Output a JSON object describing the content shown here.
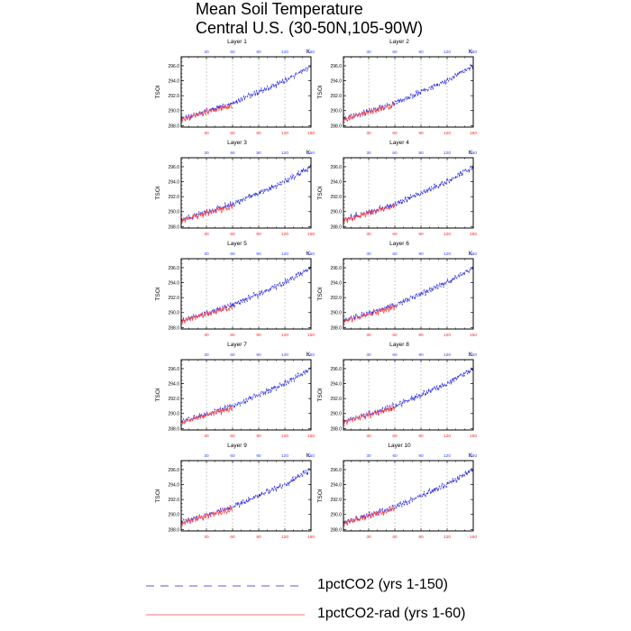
{
  "figure": {
    "title_line1": "Mean Soil Temperature",
    "title_line2": "Central U.S. (30-50N,105-90W)"
  },
  "chart_data": {
    "type": "line",
    "ylabel": "TSOI",
    "units_label": "K",
    "ylim": [
      287.8,
      297.2
    ],
    "yticks": [
      288.0,
      290.0,
      292.0,
      294.0,
      296.0
    ],
    "ytick_labels": [
      "288.0",
      "290.0",
      "292.0",
      "294.0",
      "296.0"
    ],
    "x_top": {
      "range": [
        1,
        150
      ],
      "ticks": [
        30,
        60,
        90,
        120,
        150
      ],
      "color": "#3344ff"
    },
    "x_bottom": {
      "range": [
        1,
        150
      ],
      "ticks": [
        30,
        60,
        90,
        120,
        150
      ],
      "color": "#ff2222"
    },
    "grid_vertical_at": [
      30,
      60,
      90,
      120
    ],
    "panels": [
      {
        "title": "Layer 1"
      },
      {
        "title": "Layer 2"
      },
      {
        "title": "Layer 3"
      },
      {
        "title": "Layer 4"
      },
      {
        "title": "Layer 5"
      },
      {
        "title": "Layer 6"
      },
      {
        "title": "Layer 7"
      },
      {
        "title": "Layer 8"
      },
      {
        "title": "Layer 9"
      },
      {
        "title": "Layer 10"
      }
    ],
    "series": [
      {
        "name": "1pctCO2 (yrs 1-150)",
        "color": "#2222dd",
        "style": "dashed",
        "x_range": [
          1,
          150
        ],
        "trend_points": [
          [
            1,
            288.9
          ],
          [
            30,
            289.9
          ],
          [
            60,
            291.0
          ],
          [
            90,
            292.5
          ],
          [
            120,
            294.0
          ],
          [
            150,
            296.0
          ]
        ],
        "amplitude": 0.55
      },
      {
        "name": "1pctCO2-rad (yrs 1-60)",
        "color": "#ff4444",
        "style": "solid",
        "x_range": [
          1,
          60
        ],
        "trend_points": [
          [
            1,
            288.8
          ],
          [
            30,
            289.8
          ],
          [
            60,
            290.7
          ]
        ],
        "amplitude": 0.55
      }
    ]
  },
  "legend": {
    "items": [
      {
        "label": "1pctCO2 (yrs 1-150)",
        "color": "#2222dd",
        "style": "dashed"
      },
      {
        "label": "1pctCO2-rad (yrs 1-60)",
        "color": "#ff4444",
        "style": "solid"
      }
    ]
  }
}
